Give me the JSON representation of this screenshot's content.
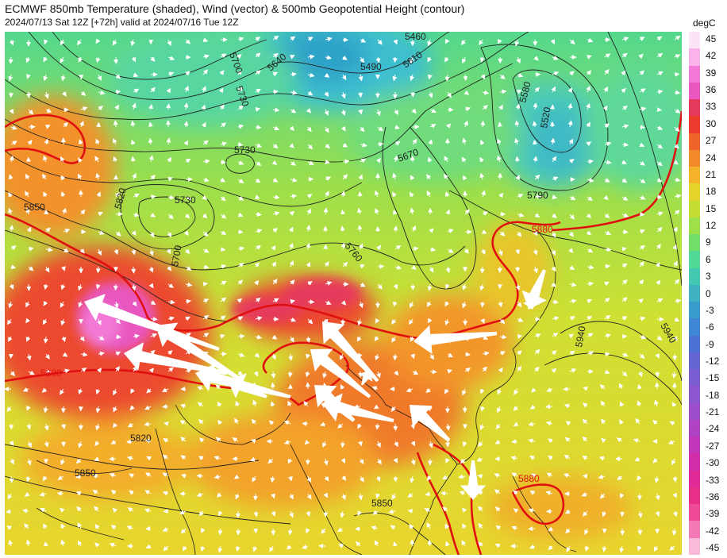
{
  "header": {
    "title": "ECMWF 850mb Temperature (shaded), Wind (vector) & 500mb Geopotential Height (contour)",
    "subtitle": "2024/07/13 Sat 12Z [+72h] valid at 2024/07/16 Tue 12Z"
  },
  "colorbar": {
    "unit": "degC",
    "ticks": [
      "45",
      "42",
      "39",
      "36",
      "33",
      "30",
      "27",
      "24",
      "21",
      "18",
      "15",
      "12",
      "9",
      "6",
      "3",
      "0",
      "-3",
      "-6",
      "-9",
      "-12",
      "-15",
      "-18",
      "-21",
      "-24",
      "-27",
      "-30",
      "-33",
      "-36",
      "-39",
      "-42",
      "-45"
    ],
    "colors": [
      "#fde3f6",
      "#f9b3ea",
      "#f27ad6",
      "#e957c0",
      "#e63a5c",
      "#ec3b2d",
      "#f0632a",
      "#f38a2a",
      "#f4b32a",
      "#e4d42c",
      "#c5dc33",
      "#9ee04a",
      "#73de6a",
      "#52d995",
      "#43c9b2",
      "#3fb3c4",
      "#3a9ccd",
      "#3f86d4",
      "#4d72d6",
      "#6566d3",
      "#7a5ed1",
      "#8d57cf",
      "#9e4ecb",
      "#b042c4",
      "#c236ba",
      "#d12fa9",
      "#df2a98",
      "#e83089",
      "#ee4a98",
      "#f37ab6",
      "#f9b9d7"
    ]
  },
  "map": {
    "contour_labels": [
      {
        "text": "5700",
        "color": "#222"
      },
      {
        "text": "5730",
        "color": "#222"
      },
      {
        "text": "5640",
        "color": "#222"
      },
      {
        "text": "5490",
        "color": "#222"
      },
      {
        "text": "5460",
        "color": "#222"
      },
      {
        "text": "5610",
        "color": "#222"
      },
      {
        "text": "5580",
        "color": "#222"
      },
      {
        "text": "5520",
        "color": "#222"
      },
      {
        "text": "5730",
        "color": "#222"
      },
      {
        "text": "5670",
        "color": "#222"
      },
      {
        "text": "5820",
        "color": "#222"
      },
      {
        "text": "5730",
        "color": "#222"
      },
      {
        "text": "5700",
        "color": "#222"
      },
      {
        "text": "5760",
        "color": "#222"
      },
      {
        "text": "5790",
        "color": "#222"
      },
      {
        "text": "5850",
        "color": "#222"
      },
      {
        "text": "5880",
        "color": "#e01010"
      },
      {
        "text": "5940",
        "color": "#222"
      },
      {
        "text": "5940",
        "color": "#222"
      },
      {
        "text": "5880",
        "color": "#e01010"
      },
      {
        "text": "5820",
        "color": "#222"
      },
      {
        "text": "5850",
        "color": "#222"
      },
      {
        "text": "5850",
        "color": "#222"
      },
      {
        "text": "5880",
        "color": "#e01010"
      }
    ]
  }
}
